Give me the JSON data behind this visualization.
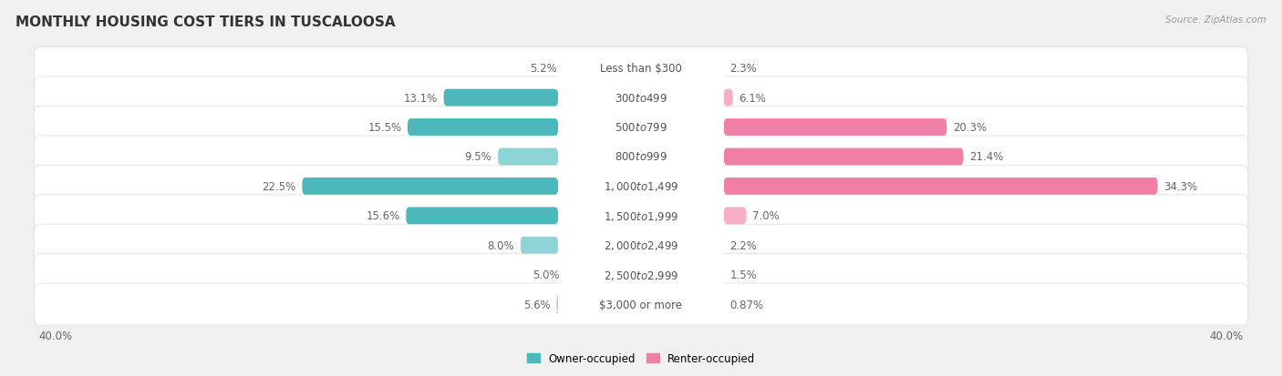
{
  "title": "MONTHLY HOUSING COST TIERS IN TUSCALOOSA",
  "source": "Source: ZipAtlas.com",
  "categories": [
    "Less than $300",
    "$300 to $499",
    "$500 to $799",
    "$800 to $999",
    "$1,000 to $1,499",
    "$1,500 to $1,999",
    "$2,000 to $2,499",
    "$2,500 to $2,999",
    "$3,000 or more"
  ],
  "owner_values": [
    5.2,
    13.1,
    15.5,
    9.5,
    22.5,
    15.6,
    8.0,
    5.0,
    5.6
  ],
  "renter_values": [
    2.3,
    6.1,
    20.3,
    21.4,
    34.3,
    7.0,
    2.2,
    1.5,
    0.87
  ],
  "owner_color": "#4db8bc",
  "renter_color": "#f07fa8",
  "owner_color_light": "#8dd4d6",
  "renter_color_light": "#f7afc8",
  "row_bg_color": "#ffffff",
  "background_color": "#f0f0f0",
  "axis_limit": 40.0,
  "title_fontsize": 11,
  "label_fontsize": 8.5,
  "cat_fontsize": 8.5,
  "value_fontsize": 8.5,
  "bar_height": 0.58,
  "legend_owner": "Owner-occupied",
  "legend_renter": "Renter-occupied"
}
